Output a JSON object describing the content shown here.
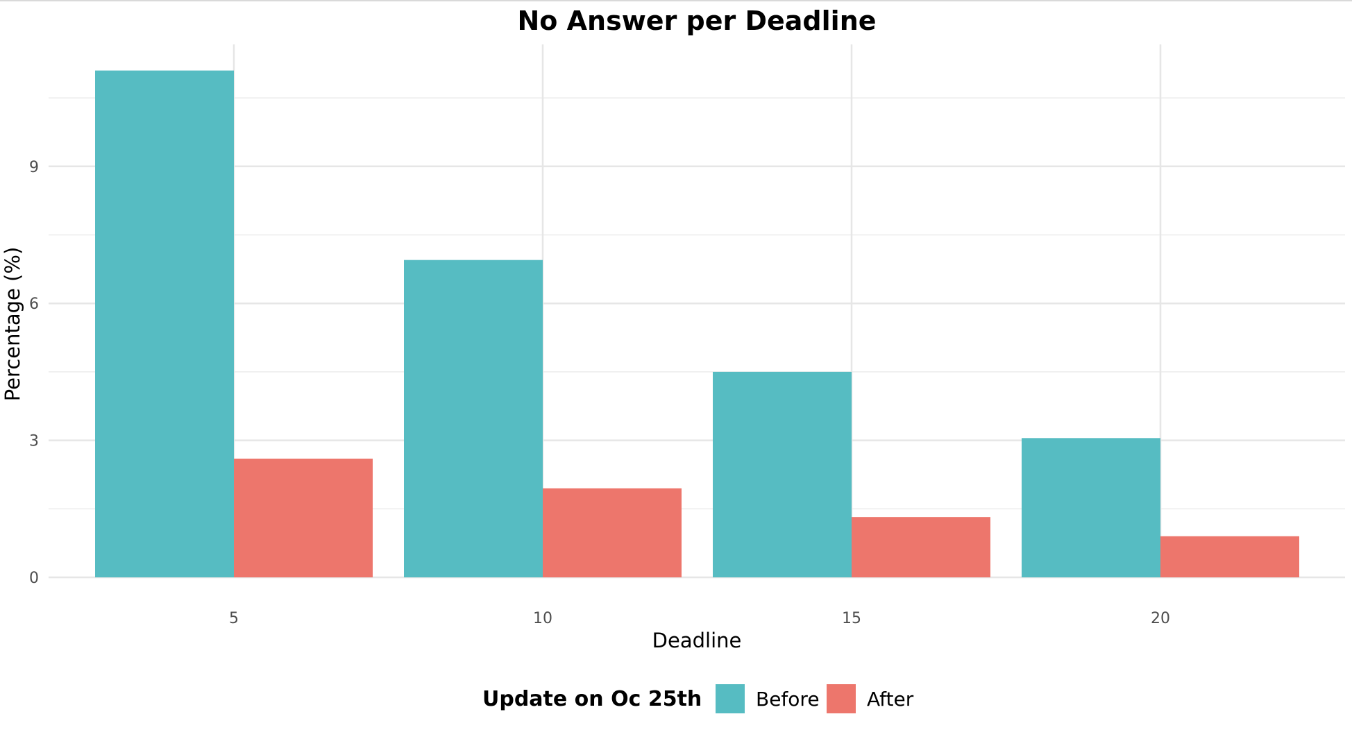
{
  "chart_data": {
    "type": "bar",
    "title": "No Answer per Deadline",
    "xlabel": "Deadline",
    "ylabel": "Percentage (%)",
    "categories": [
      "5",
      "10",
      "15",
      "20"
    ],
    "y_ticks": [
      "0",
      "3",
      "6",
      "9"
    ],
    "ylim": [
      -0.5,
      12.2
    ],
    "grid": true,
    "legend": {
      "title": "Update on Oc 25th",
      "position": "bottom"
    },
    "series": [
      {
        "name": "Before",
        "color": "#56BCC2",
        "values": [
          11.1,
          6.95,
          4.5,
          3.05
        ]
      },
      {
        "name": "After",
        "color": "#ED766C",
        "values": [
          2.6,
          1.95,
          1.32,
          0.9
        ]
      }
    ]
  }
}
